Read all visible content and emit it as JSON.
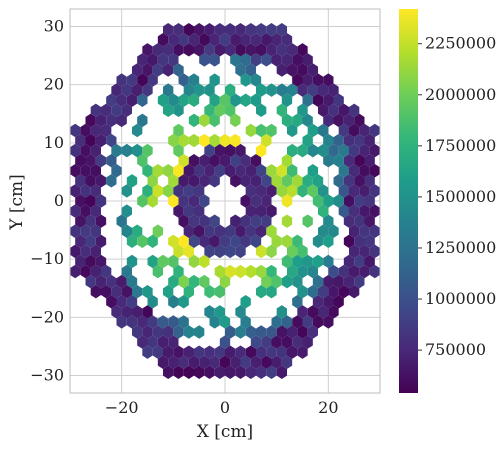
{
  "chart_data": {
    "type": "heatmap",
    "subtype": "hexbin",
    "title": "",
    "xlabel": "X [cm]",
    "ylabel": "Y [cm]",
    "xlim": [
      -30,
      30
    ],
    "ylim": [
      -33,
      33
    ],
    "x_ticks": [
      -20,
      0,
      20
    ],
    "x_tick_labels": [
      "−20",
      "0",
      "20"
    ],
    "y_ticks": [
      -30,
      -20,
      -10,
      0,
      10,
      20,
      30
    ],
    "y_tick_labels": [
      "−30",
      "−20",
      "−10",
      "0",
      "10",
      "20",
      "30"
    ],
    "grid": true,
    "colormap": "viridis",
    "colorbar": {
      "vmin": 540000,
      "vmax": 2420000,
      "ticks": [
        750000,
        1000000,
        1250000,
        1500000,
        1750000,
        2000000,
        2250000
      ],
      "tick_labels": [
        "750000",
        "1000000",
        "1250000",
        "1500000",
        "1750000",
        "2000000",
        "2250000"
      ]
    },
    "hex_pitch_cm": 2.0,
    "regions": [
      {
        "name": "outer octagonal ring",
        "radius_range_cm": [
          24,
          30
        ],
        "value_range": [
          550000,
          850000
        ]
      },
      {
        "name": "middle annulus",
        "radius_range_cm": [
          9,
          24
        ],
        "value_range": [
          1100000,
          2400000
        ]
      },
      {
        "name": "inner ring",
        "radius_range_cm": [
          4,
          9
        ],
        "value_range": [
          600000,
          900000
        ]
      }
    ]
  },
  "colors": {
    "viridis": [
      "#440154",
      "#482878",
      "#3e4a89",
      "#31688e",
      "#26828e",
      "#1f9e89",
      "#35b779",
      "#6ece58",
      "#b5de2b",
      "#fde725"
    ],
    "grid": "#cfcfcf",
    "frame": "#bdbdbd"
  }
}
